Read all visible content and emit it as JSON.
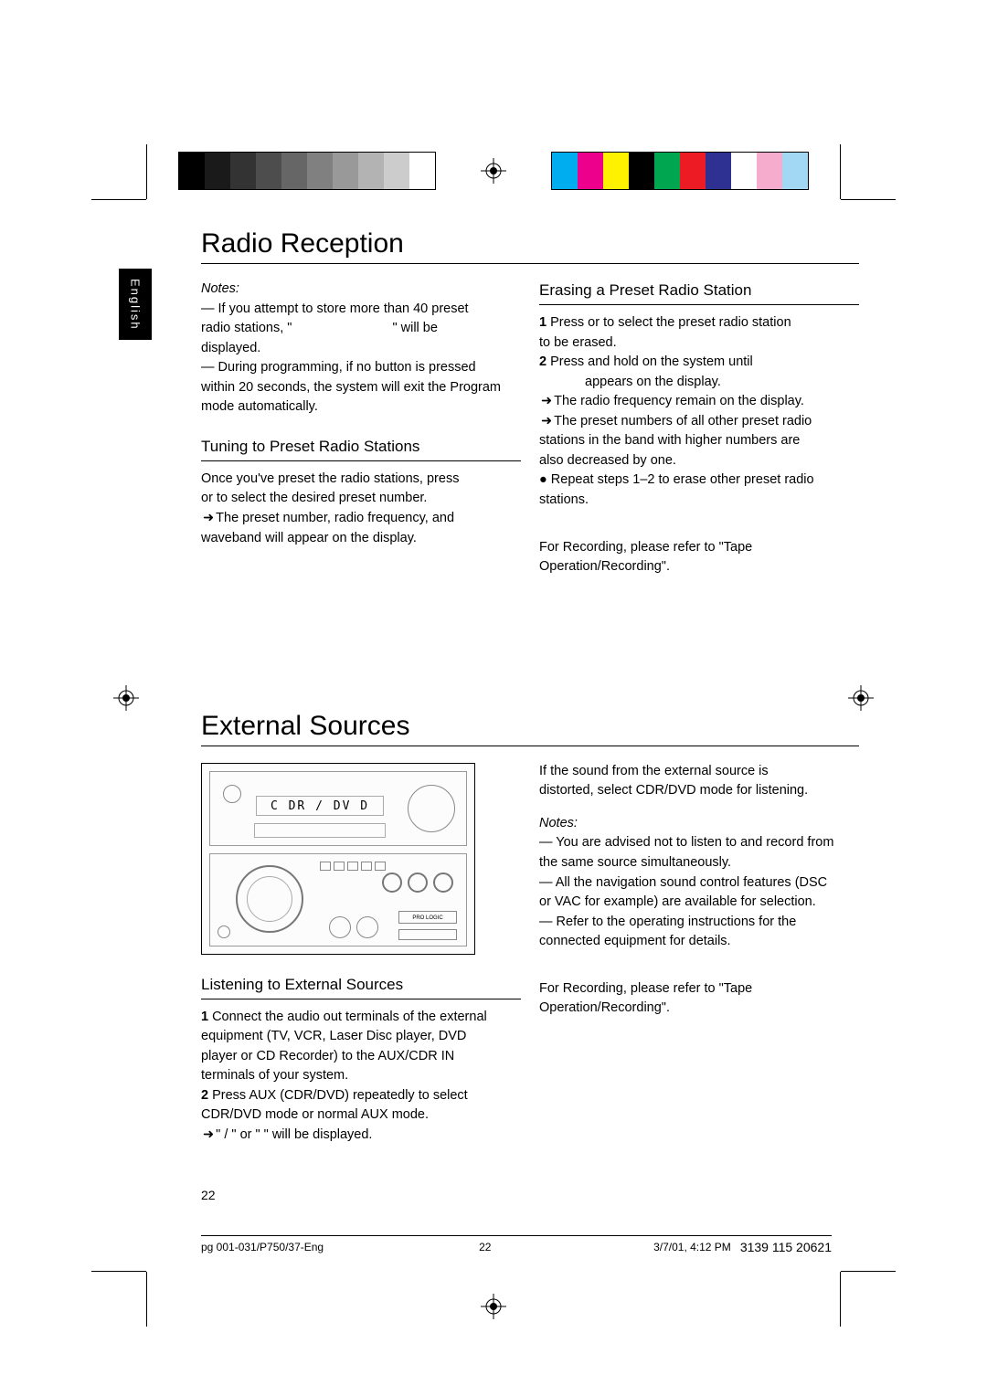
{
  "colorbar": {
    "grays": [
      "#000000",
      "#1a1a1a",
      "#333333",
      "#4d4d4d",
      "#666666",
      "#808080",
      "#999999",
      "#b3b3b3",
      "#cccccc",
      "#ffffff"
    ],
    "colors": [
      "#00adef",
      "#ec008c",
      "#fff200",
      "#000000",
      "#00a650",
      "#ed1c24",
      "#2e3192",
      "#ffffff",
      "#f6adcd",
      "#a3d8f4"
    ]
  },
  "langTab": "English",
  "title1": "Radio Reception",
  "notesLabel": "Notes:",
  "radio": {
    "n1a": "— If you attempt to store more than 40 preset",
    "n1b": "radio stations, \"",
    "n1c": "\" will be",
    "n1d": "displayed.",
    "n2a": "— During programming, if no button is pressed",
    "n2b": "within 20 seconds, the system will exit the Program",
    "n2c": "mode automatically."
  },
  "tuningHead": "Tuning to Preset Radio Stations",
  "tuning": {
    "p1a": "Once you've preset the radio stations, press",
    "p1b": "or       to select the desired preset number.",
    "p2a": "The preset number, radio frequency, and",
    "p2b": "waveband will appear on the display."
  },
  "erasingHead": "Erasing a Preset Radio Station",
  "erasing": {
    "s1a": "Press      or       to select the preset radio station",
    "s1b": "to be erased.",
    "s2a": "Press and hold   on the system until",
    "s2b": "appears on the display.",
    "b1": "The radio frequency remain on the display.",
    "b2a": "The preset numbers of all other preset radio",
    "b2b": "stations in the band with higher numbers are",
    "b2c": "also decreased by one.",
    "r1a": "Repeat steps 1–2 to erase other preset radio",
    "r1b": "stations.",
    "rec1": "For Recording, please refer to \"Tape",
    "rec2": "Operation/Recording\"."
  },
  "title2": "External Sources",
  "deviceDisplay": "C DR / DV D",
  "prologic": "PRO LOGIC",
  "listenHead": "Listening to External Sources",
  "listen": {
    "s1a": "Connect the audio out terminals of the external",
    "s1b": "equipment (TV, VCR, Laser Disc player, DVD",
    "s1c": "player or CD Recorder) to the AUX/CDR IN",
    "s1d": "terminals of your system.",
    "s2a": "Press AUX (CDR/DVD) repeatedly to select",
    "s2b": "CDR/DVD mode or normal AUX mode.",
    "s2c": "\"       /        \" or \"        \" will be displayed."
  },
  "ext": {
    "p1a": "If the sound from the external source is",
    "p1b": "distorted, select CDR/DVD mode for listening.",
    "n1a": "— You are advised not to listen to and record from",
    "n1b": "the same source simultaneously.",
    "n2a": "— All the navigation sound control features (DSC",
    "n2b": "or VAC for example) are available for selection.",
    "n3a": "— Refer to the operating instructions for the",
    "n3b": "connected equipment for details.",
    "rec1": "For Recording, please refer to \"Tape",
    "rec2": "Operation/Recording\"."
  },
  "pageNum": "22",
  "footer": {
    "file": "pg 001-031/P750/37-Eng",
    "mid": "22",
    "date": "3/7/01, 4:12 PM",
    "code": "3139 115 20621"
  }
}
